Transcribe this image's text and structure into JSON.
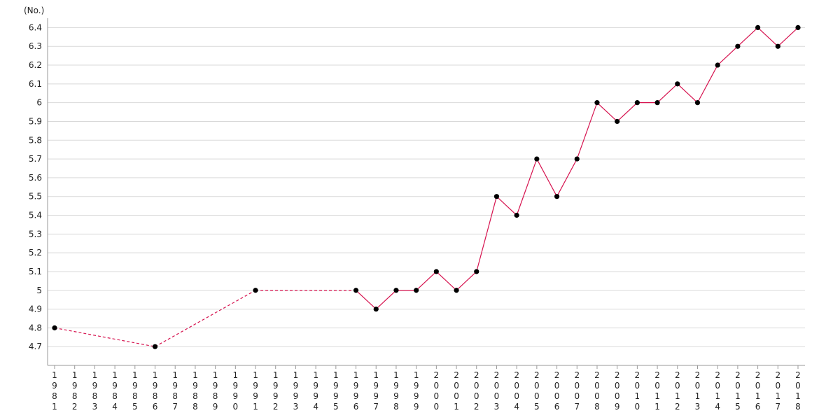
{
  "chart_data": {
    "type": "line",
    "unit_label": "(No.)",
    "x": [
      "1981",
      "1982",
      "1983",
      "1984",
      "1985",
      "1986",
      "1987",
      "1988",
      "1989",
      "1990",
      "1991",
      "1992",
      "1993",
      "1994",
      "1995",
      "1996",
      "1997",
      "1998",
      "1999",
      "2000",
      "2001",
      "2002",
      "2003",
      "2004",
      "2005",
      "2006",
      "2007",
      "2008",
      "2009",
      "2010",
      "2011",
      "2012",
      "2013",
      "2014",
      "2015",
      "2016",
      "2017",
      "2018"
    ],
    "series": [
      {
        "values": [
          4.8,
          null,
          null,
          null,
          null,
          4.7,
          null,
          null,
          null,
          null,
          5.0,
          null,
          null,
          null,
          null,
          5.0,
          4.9,
          5.0,
          5.0,
          5.1,
          5.0,
          5.1,
          5.5,
          5.4,
          5.7,
          5.5,
          5.7,
          6.0,
          5.9,
          6.0,
          6.0,
          6.1,
          6.0,
          6.2,
          6.3,
          6.4,
          6.3,
          6.4
        ],
        "color": "#d6134f",
        "gaps_dashed": true
      }
    ],
    "yticks": [
      "4.7",
      "4.8",
      "4.9",
      "5",
      "5.1",
      "5.2",
      "5.3",
      "5.4",
      "5.5",
      "5.6",
      "5.7",
      "5.8",
      "5.9",
      "6",
      "6.1",
      "6.2",
      "6.3",
      "6.4"
    ],
    "ylim": [
      4.6,
      6.45
    ],
    "grid": true,
    "legend": "none"
  }
}
